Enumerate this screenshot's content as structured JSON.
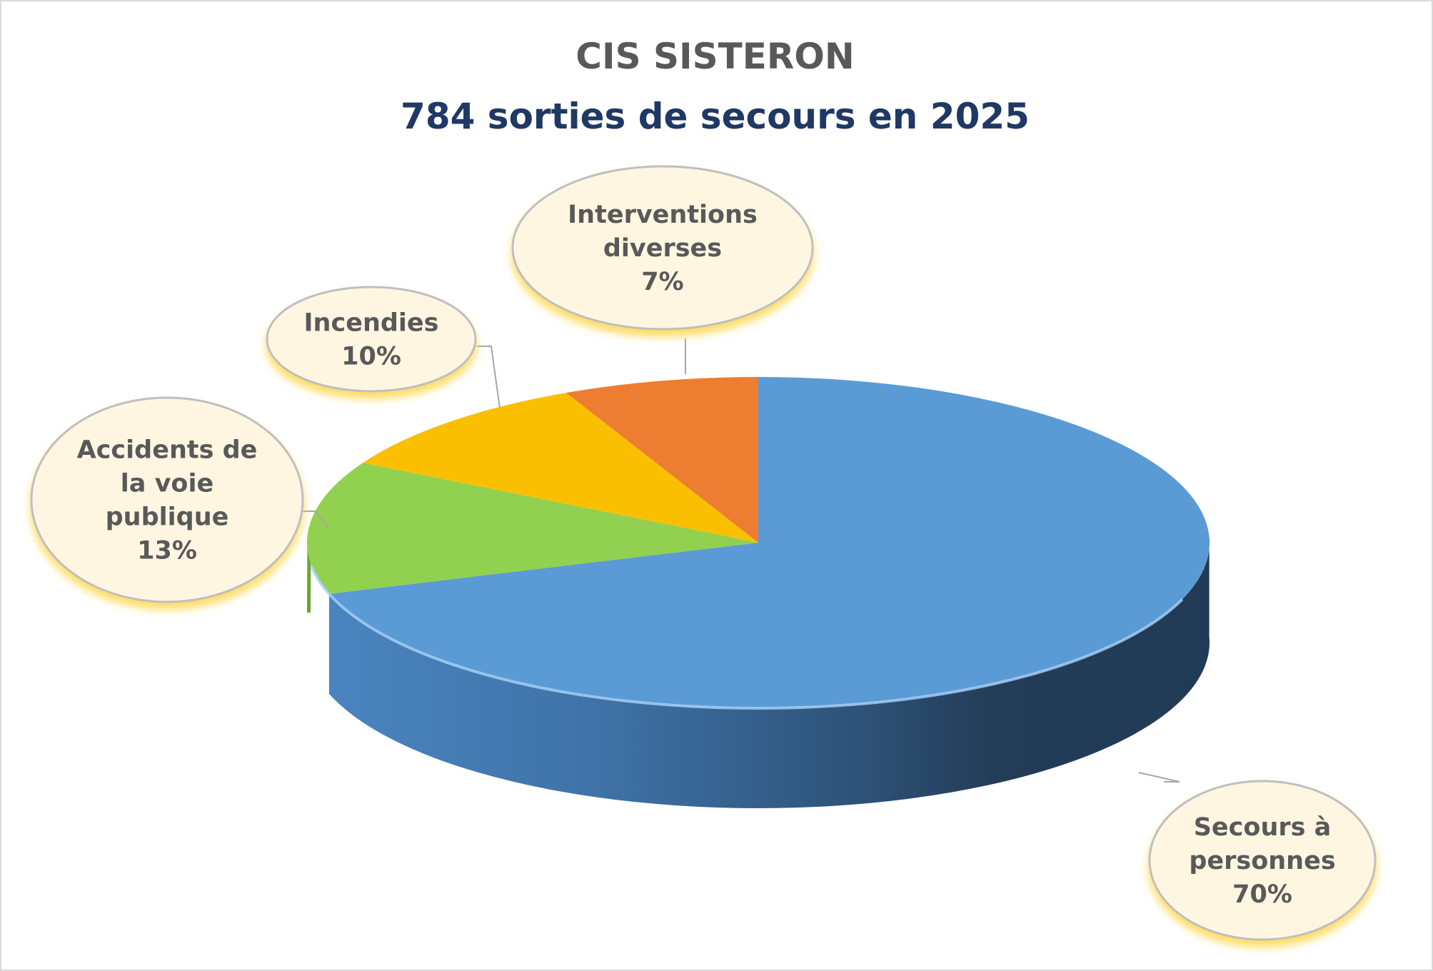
{
  "chart_data": {
    "type": "pie",
    "title": "CIS SISTERON",
    "subtitle": "784 sorties de secours en 2025",
    "legend": "none",
    "slices": [
      {
        "label_lines": [
          "Secours à",
          "personnes"
        ],
        "percent_label": "70%",
        "value": 70,
        "color": "#5b9bd5"
      },
      {
        "label_lines": [
          "Accidents de",
          "la voie",
          "publique"
        ],
        "percent_label": "13%",
        "value": 13,
        "color": "#92d050"
      },
      {
        "label_lines": [
          "Incendies"
        ],
        "percent_label": "10%",
        "value": 10,
        "color": "#fac000"
      },
      {
        "label_lines": [
          "Interventions",
          "diverses"
        ],
        "percent_label": "7%",
        "value": 7,
        "color": "#ed7d31"
      }
    ]
  }
}
